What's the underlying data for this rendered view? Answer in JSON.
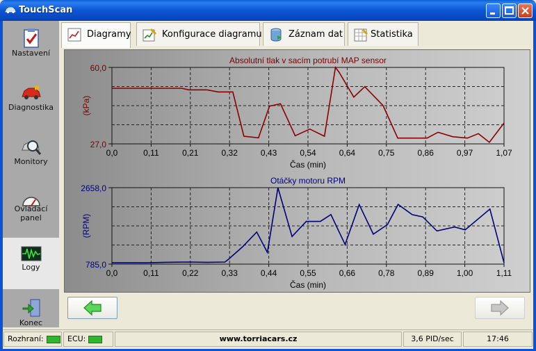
{
  "window": {
    "title": "TouchScan"
  },
  "sidebar": {
    "items": [
      {
        "label": "Nastavení",
        "icon": "settings-clipboard-icon"
      },
      {
        "label": "Diagnostika",
        "icon": "car-icon"
      },
      {
        "label": "Monitory",
        "icon": "magnifier-icon"
      },
      {
        "label": "Ovládací panel",
        "icon": "gauge-icon"
      },
      {
        "label": "Logy",
        "icon": "waveform-icon"
      },
      {
        "label": "Konec",
        "icon": "exit-door-icon"
      }
    ],
    "active_index": 4
  },
  "tabs": [
    {
      "label": "Diagramy",
      "icon": "chart-icon"
    },
    {
      "label": "Konfigurace diagramu",
      "icon": "chart-edit-icon"
    },
    {
      "label": "Záznam dat",
      "icon": "database-icon"
    },
    {
      "label": "Statistika",
      "icon": "statistics-icon"
    }
  ],
  "chart_data": [
    {
      "type": "line",
      "title": "Absolutní tlak v sacím potrubí MAP sensor",
      "xlabel": "Čas (min)",
      "ylabel": "(kPa)",
      "ylim": [
        27.0,
        60.0
      ],
      "xlim": [
        0.0,
        1.07
      ],
      "xticks": [
        "0,0",
        "0,11",
        "0,21",
        "0,32",
        "0,43",
        "0,54",
        "0,64",
        "0,75",
        "0,86",
        "0,97",
        "1,07"
      ],
      "yticks": [
        "60,0",
        "27,0"
      ],
      "color": "#8b0000",
      "grid": true,
      "x": [
        0.0,
        0.05,
        0.1,
        0.15,
        0.19,
        0.21,
        0.26,
        0.29,
        0.32,
        0.33,
        0.36,
        0.4,
        0.43,
        0.46,
        0.5,
        0.54,
        0.58,
        0.61,
        0.62,
        0.66,
        0.69,
        0.74,
        0.78,
        0.83,
        0.86,
        0.89,
        0.93,
        0.97,
        1.0,
        1.03,
        1.07
      ],
      "y": [
        51.0,
        51.0,
        51.0,
        51.0,
        51.0,
        50.3,
        50.3,
        49.4,
        49.4,
        49.4,
        30.3,
        29.6,
        43.3,
        44.3,
        30.5,
        33.4,
        30.3,
        60.0,
        57.9,
        47.2,
        51.7,
        43.5,
        29.5,
        29.5,
        29.5,
        32.0,
        30.1,
        29.5,
        31.4,
        27.7,
        36.0
      ]
    },
    {
      "type": "line",
      "title": "Otáčky motoru RPM",
      "xlabel": "Čas (min)",
      "ylabel": "(RPM)",
      "ylim": [
        785.0,
        2658.0
      ],
      "xlim": [
        0.0,
        1.11
      ],
      "xticks": [
        "0,0",
        "0,11",
        "0,22",
        "0,33",
        "0,44",
        "0,55",
        "0,66",
        "0,78",
        "0,89",
        "1,00",
        "1,11"
      ],
      "yticks": [
        "2658,0",
        "785,0"
      ],
      "color": "#00007a",
      "grid": true,
      "x": [
        0.0,
        0.05,
        0.1,
        0.15,
        0.22,
        0.27,
        0.32,
        0.33,
        0.37,
        0.41,
        0.44,
        0.47,
        0.51,
        0.55,
        0.59,
        0.62,
        0.66,
        0.7,
        0.74,
        0.78,
        0.81,
        0.85,
        0.88,
        0.92,
        0.97,
        1.0,
        1.07,
        1.11
      ],
      "y": [
        818,
        818,
        818,
        830,
        836,
        830,
        836,
        905,
        1210,
        1572,
        1071,
        2658,
        1461,
        1830,
        1830,
        1999,
        1266,
        2245,
        1519,
        1754,
        2247,
        1997,
        1942,
        1597,
        1694,
        1624,
        2133,
        818
      ]
    }
  ],
  "status": {
    "interface_label": "Rozhraní:",
    "ecu_label": "ECU:",
    "website": "www.torriacars.cz",
    "rate": "3,6 PID/sec",
    "time": "17:46",
    "ok_color": "#2fb52f"
  }
}
